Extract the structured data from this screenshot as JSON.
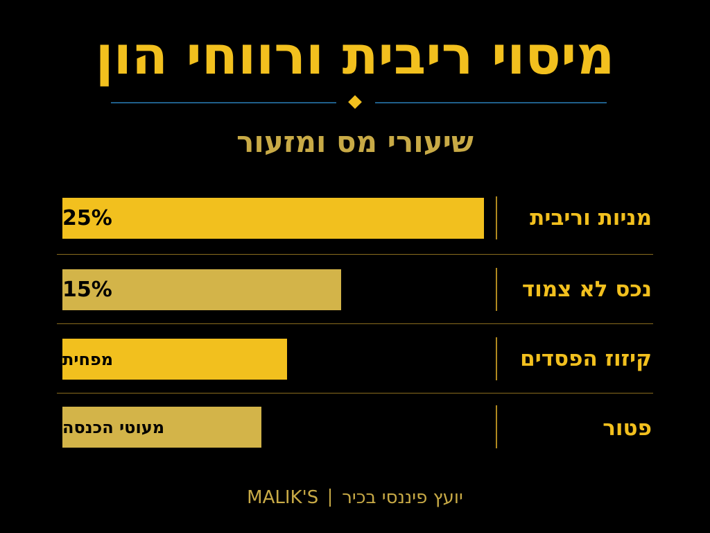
{
  "header": {
    "title": "מיסוי ריבית ורווחי הון",
    "subtitle": "שיעורי מס ומזעור"
  },
  "rows": [
    {
      "label": "מניות וריבית",
      "value": "25%"
    },
    {
      "label": "נכס לא צמוד",
      "value": "15%"
    },
    {
      "label": "קיזוז הפסדים",
      "value": "מפחית"
    },
    {
      "label": "פטור",
      "value": "מעוטי הכנסה"
    }
  ],
  "footer": {
    "brand": "MALIK'S",
    "tagline": "יועץ פיננסי בכיר"
  }
}
